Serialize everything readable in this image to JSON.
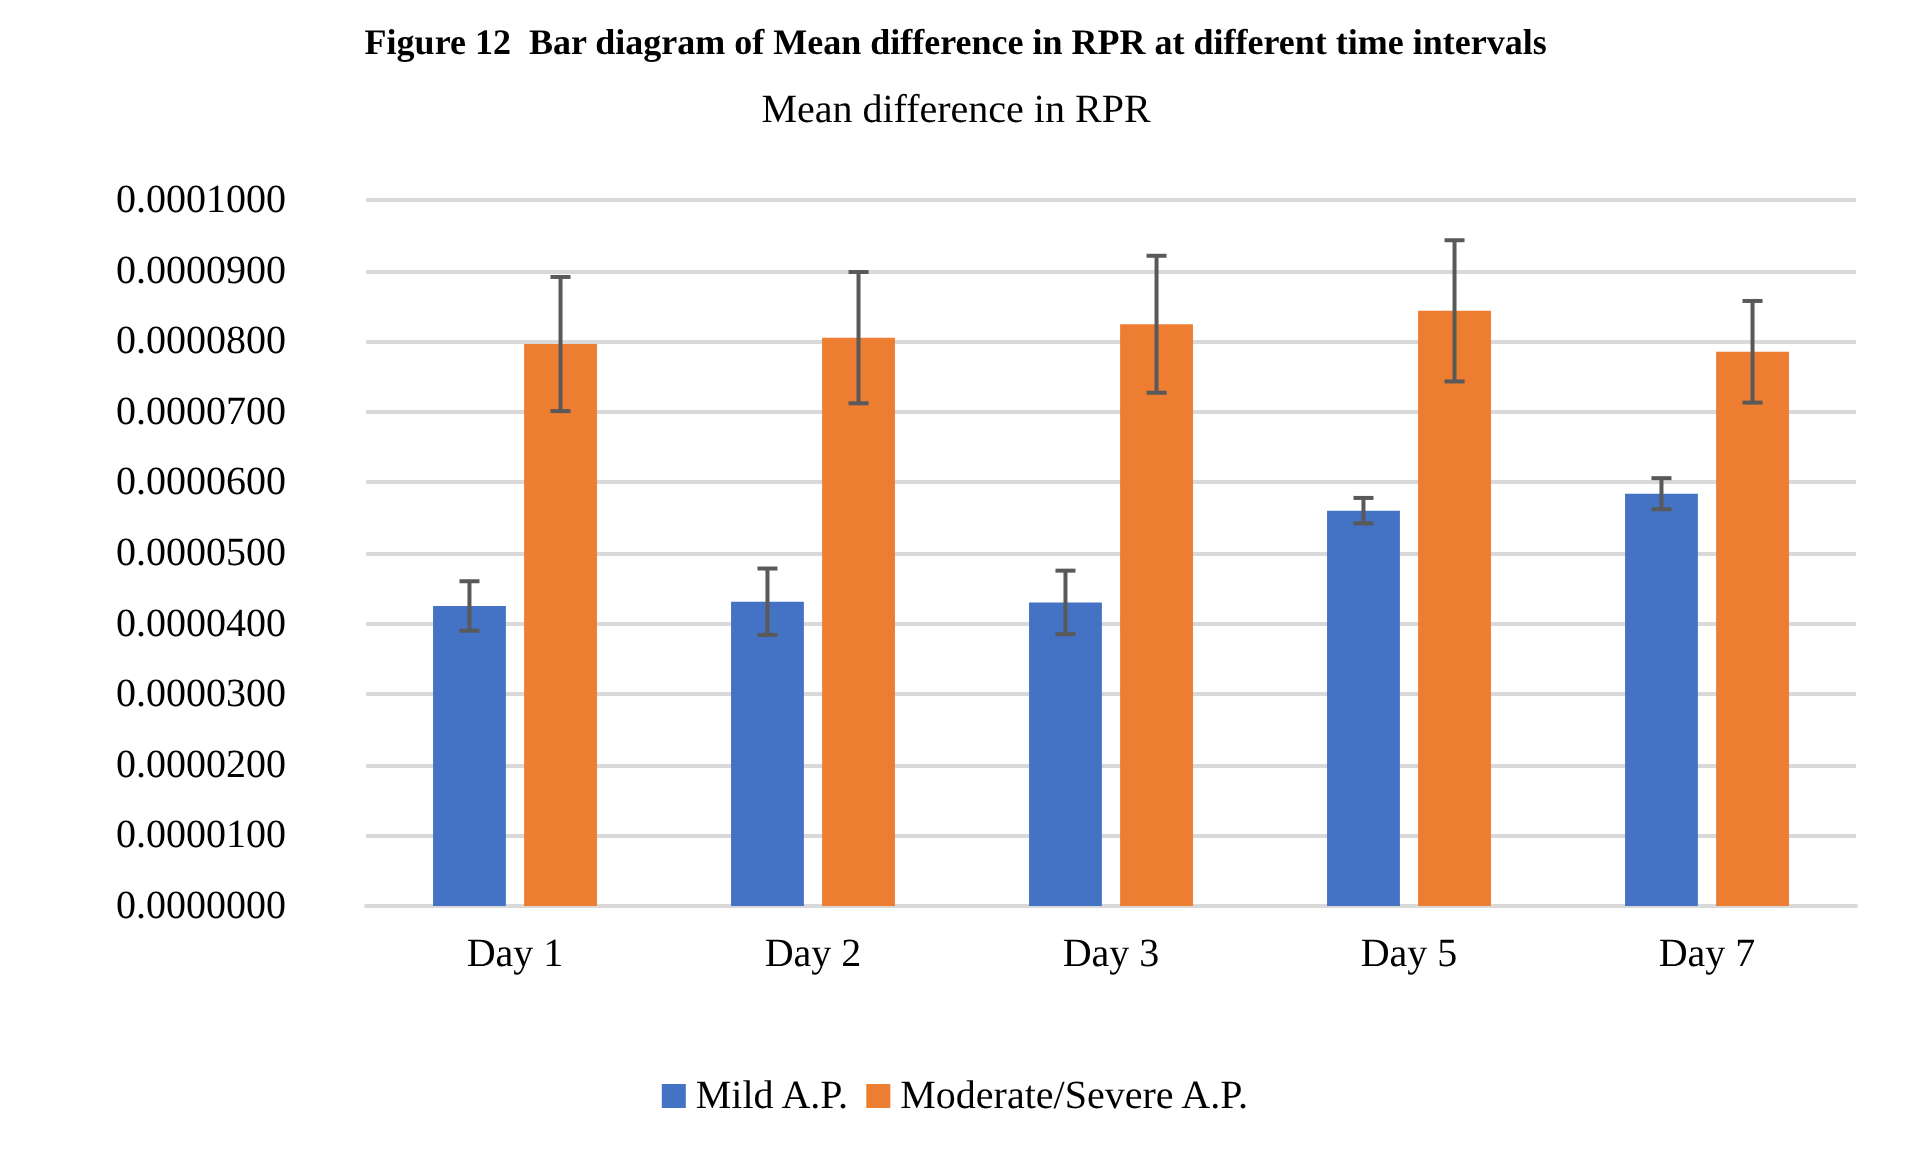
{
  "chart_data": {
    "type": "bar",
    "title": "Mean difference in RPR",
    "annotations": [
      "Figure 12  Bar diagram of Mean difference in RPR at different time intervals"
    ],
    "categories": [
      "Day 1",
      "Day 2",
      "Day 3",
      "Day 5",
      "Day 7"
    ],
    "series": [
      {
        "name": "Mild A.P.",
        "color": "#4472c4",
        "values": [
          4.25e-05,
          4.31e-05,
          4.3e-05,
          5.6e-05,
          5.84e-05
        ],
        "errors": [
          3.5e-06,
          4.7e-06,
          4.5e-06,
          1.8e-06,
          2.2e-06
        ]
      },
      {
        "name": "Moderate/Severe A.P.",
        "color": "#ed7d31",
        "values": [
          7.96e-05,
          8.05e-05,
          8.24e-05,
          8.43e-05,
          7.85e-05
        ],
        "errors": [
          9.5e-06,
          9.3e-06,
          9.7e-06,
          1e-05,
          7.2e-06
        ]
      }
    ],
    "ylim": [
      0,
      0.0001
    ],
    "yticks": [
      {
        "value": 0,
        "label": "0.0000000"
      },
      {
        "value": 1e-05,
        "label": "0.0000100"
      },
      {
        "value": 2e-05,
        "label": "0.0000200"
      },
      {
        "value": 3e-05,
        "label": "0.0000300"
      },
      {
        "value": 4e-05,
        "label": "0.0000400"
      },
      {
        "value": 5e-05,
        "label": "0.0000500"
      },
      {
        "value": 6e-05,
        "label": "0.0000600"
      },
      {
        "value": 7e-05,
        "label": "0.0000700"
      },
      {
        "value": 8e-05,
        "label": "0.0000800"
      },
      {
        "value": 9e-05,
        "label": "0.0000900"
      },
      {
        "value": 0.0001,
        "label": "0.0001000"
      }
    ],
    "grid": "y",
    "legend": "bottom"
  }
}
